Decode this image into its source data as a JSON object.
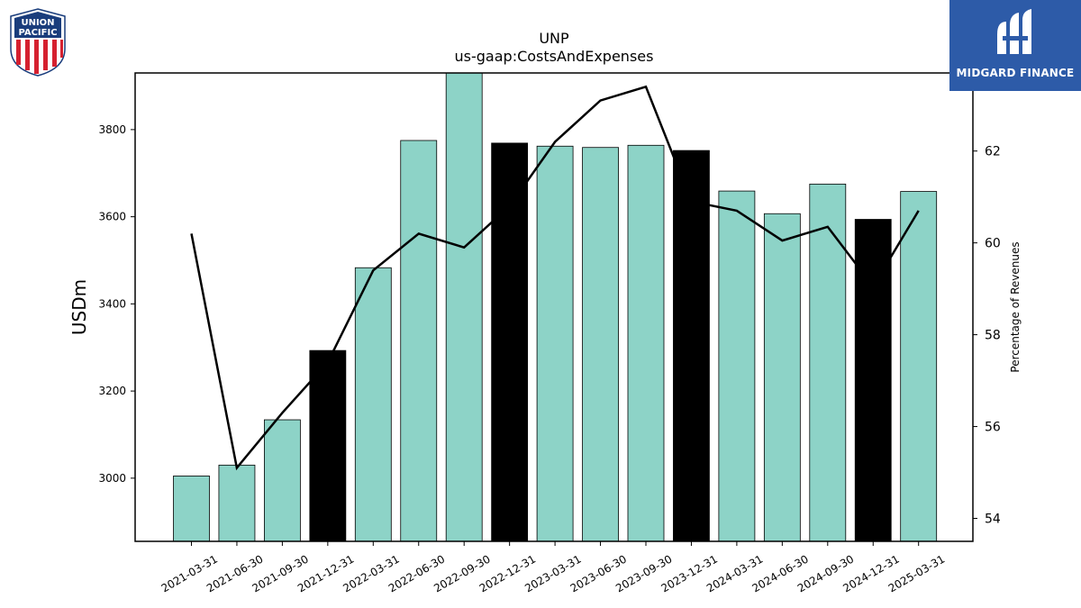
{
  "logos": {
    "left": {
      "line1": "UNION",
      "line2": "PACIFIC"
    },
    "right": {
      "brand": "MIDGARD FINANCE"
    }
  },
  "colors": {
    "bar": "#8dd3c7",
    "bar_highlight": "#000000",
    "line": "#000000"
  },
  "chart_data": {
    "type": "bar",
    "title": "UNP",
    "subtitle": "us-gaap:CostsAndExpenses",
    "ylabel": "USDm",
    "y2label": "Percentage of Revenues",
    "ylim": [
      2855,
      3930
    ],
    "y2lim": [
      53.5,
      63.7
    ],
    "yticks": [
      3000,
      3200,
      3400,
      3600,
      3800
    ],
    "y2ticks": [
      54,
      56,
      58,
      60,
      62
    ],
    "categories": [
      "2021-03-31",
      "2021-06-30",
      "2021-09-30",
      "2021-12-31",
      "2022-03-31",
      "2022-06-30",
      "2022-09-30",
      "2022-12-31",
      "2023-03-31",
      "2023-06-30",
      "2023-09-30",
      "2023-12-31",
      "2024-03-31",
      "2024-06-30",
      "2024-09-30",
      "2024-12-31",
      "2025-03-31"
    ],
    "series": [
      {
        "type": "bar",
        "values": [
          3005,
          3030,
          3134,
          3293,
          3483,
          3775,
          3935,
          3769,
          3762,
          3759,
          3764,
          3752,
          3659,
          3607,
          3675,
          3594,
          3658
        ],
        "highlight": [
          false,
          false,
          false,
          true,
          false,
          false,
          false,
          true,
          false,
          false,
          false,
          true,
          false,
          false,
          false,
          true,
          false
        ]
      },
      {
        "type": "line",
        "axis": "right",
        "values": [
          60.2,
          55.1,
          56.3,
          57.4,
          59.4,
          60.2,
          59.9,
          60.8,
          62.2,
          63.1,
          63.4,
          60.9,
          60.7,
          60.05,
          60.35,
          59.05,
          60.7
        ]
      }
    ],
    "grid": false,
    "legend": "none"
  }
}
